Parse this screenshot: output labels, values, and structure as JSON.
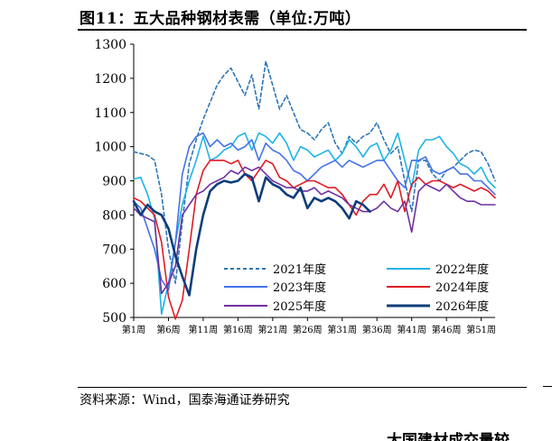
{
  "figure": {
    "title": "图11：五大品种钢材表需（单位:万吨）",
    "source": "资料来源：Wind，国泰海通证券研究",
    "next_heading_partial": "大国建材成交量较"
  },
  "chart_data": {
    "type": "line",
    "xlabel": "",
    "ylabel": "",
    "ylim": [
      500,
      1300
    ],
    "yticks": [
      500,
      600,
      700,
      800,
      900,
      1000,
      1100,
      1200,
      1300
    ],
    "xlim": [
      1,
      53
    ],
    "xtick_labels": [
      "第1周",
      "第6周",
      "第11周",
      "第16周",
      "第21周",
      "第26周",
      "第31周",
      "第36周",
      "第41周",
      "第46周",
      "第51周"
    ],
    "xtick_weeks": [
      1,
      6,
      11,
      16,
      21,
      26,
      31,
      36,
      41,
      46,
      51
    ],
    "grid": false,
    "legend_position": "lower-center",
    "series": [
      {
        "name": "2021年度",
        "color": "#2e75b6",
        "style": "dashed",
        "width": 1.6,
        "values": [
          985,
          980,
          975,
          960,
          860,
          700,
          600,
          780,
          950,
          1020,
          1080,
          1130,
          1180,
          1210,
          1230,
          1190,
          1150,
          1210,
          1110,
          1250,
          1180,
          1110,
          1150,
          1100,
          1050,
          1040,
          1020,
          1050,
          1070,
          1010,
          980,
          1030,
          1010,
          1030,
          1040,
          1070,
          1020,
          980,
          1000,
          900,
          810,
          960,
          960,
          920,
          900,
          930,
          940,
          960,
          980,
          990,
          985,
          950,
          900
        ]
      },
      {
        "name": "2022年度",
        "color": "#1eb4e6",
        "style": "solid",
        "width": 1.6,
        "values": [
          905,
          910,
          860,
          790,
          510,
          600,
          720,
          830,
          900,
          960,
          1030,
          960,
          970,
          990,
          1000,
          1030,
          1040,
          990,
          1040,
          1030,
          1010,
          1040,
          1010,
          960,
          1000,
          990,
          970,
          980,
          990,
          960,
          980,
          1020,
          1000,
          970,
          1000,
          1010,
          960,
          990,
          1040,
          960,
          880,
          990,
          1020,
          1020,
          1030,
          1000,
          980,
          950,
          940,
          920,
          940,
          900,
          880
        ]
      },
      {
        "name": "2023年度",
        "color": "#4472e8",
        "style": "solid",
        "width": 1.6,
        "values": [
          840,
          820,
          760,
          700,
          610,
          580,
          720,
          920,
          1000,
          1030,
          1040,
          1000,
          1020,
          1000,
          1010,
          990,
          1000,
          1020,
          960,
          1010,
          990,
          980,
          960,
          930,
          920,
          900,
          920,
          940,
          950,
          960,
          940,
          960,
          950,
          940,
          950,
          960,
          960,
          930,
          900,
          880,
          960,
          960,
          970,
          930,
          920,
          930,
          940,
          920,
          920,
          900,
          900,
          880,
          860
        ]
      },
      {
        "name": "2024年度",
        "color": "#e01b24",
        "style": "solid",
        "width": 1.6,
        "values": [
          850,
          840,
          820,
          800,
          720,
          560,
          495,
          550,
          700,
          860,
          930,
          960,
          960,
          960,
          950,
          960,
          920,
          900,
          930,
          960,
          950,
          910,
          900,
          880,
          890,
          900,
          900,
          890,
          880,
          880,
          860,
          830,
          800,
          840,
          860,
          860,
          890,
          850,
          900,
          810,
          890,
          910,
          890,
          900,
          900,
          890,
          880,
          890,
          880,
          870,
          880,
          870,
          850
        ]
      },
      {
        "name": "2025年度",
        "color": "#7030a0",
        "style": "solid",
        "width": 1.6,
        "values": [
          820,
          800,
          790,
          780,
          570,
          600,
          650,
          800,
          830,
          860,
          870,
          890,
          900,
          910,
          930,
          920,
          940,
          930,
          940,
          920,
          900,
          890,
          880,
          880,
          870,
          870,
          880,
          860,
          870,
          860,
          850,
          830,
          820,
          810,
          810,
          820,
          840,
          820,
          810,
          840,
          750,
          870,
          890,
          880,
          870,
          890,
          870,
          850,
          840,
          840,
          830,
          830,
          830
        ]
      },
      {
        "name": "2026年度",
        "color": "#0e3d7a",
        "style": "solid",
        "width": 2.6,
        "values": [
          840,
          800,
          830,
          810,
          800,
          760,
          680,
          620,
          565,
          700,
          800,
          870,
          890,
          900,
          895,
          900,
          920,
          910,
          840,
          910,
          890,
          880,
          860,
          850,
          880,
          820,
          850,
          840,
          850,
          840,
          820,
          790,
          840,
          830,
          810
        ]
      }
    ]
  }
}
